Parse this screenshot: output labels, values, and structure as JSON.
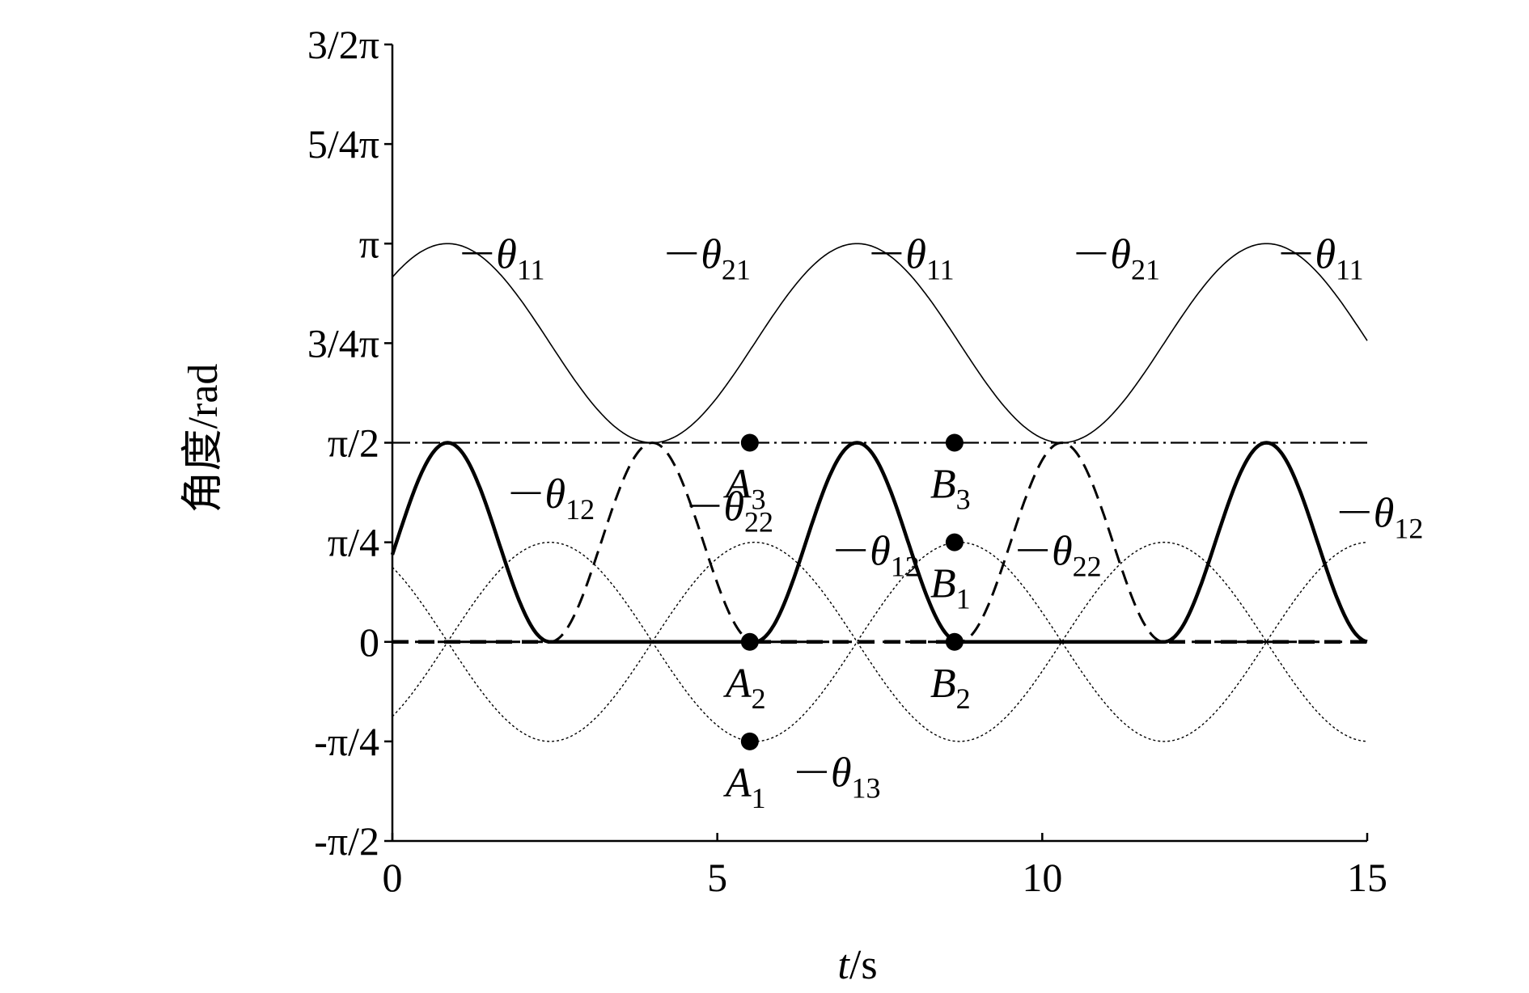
{
  "chart_data": {
    "type": "line",
    "title": "",
    "xlabel_italic": "t",
    "xlabel_unit": "/s",
    "ylabel": "角度/rad",
    "xlim": [
      0,
      15
    ],
    "ylim": [
      -1.5708,
      4.7124
    ],
    "x_ticks": [
      {
        "value": 0,
        "label": "0"
      },
      {
        "value": 5,
        "label": "5"
      },
      {
        "value": 10,
        "label": "10"
      },
      {
        "value": 15,
        "label": "15"
      }
    ],
    "y_ticks": [
      {
        "value": -1.5708,
        "label": "-π/2"
      },
      {
        "value": -0.7854,
        "label": "-π/4"
      },
      {
        "value": 0,
        "label": "0"
      },
      {
        "value": 0.7854,
        "label": "π/4"
      },
      {
        "value": 1.5708,
        "label": "π/2"
      },
      {
        "value": 2.3562,
        "label": "3/4π"
      },
      {
        "value": 3.1416,
        "label": "π"
      },
      {
        "value": 3.927,
        "label": "5/4π"
      },
      {
        "value": 4.7124,
        "label": "3/2π"
      }
    ],
    "period": 6.3,
    "series": [
      {
        "name": "θ11/θ21",
        "style": "thin-solid",
        "offset": 2.3562,
        "amplitude": 0.7854,
        "phase": 0.85,
        "mode": "cosine"
      },
      {
        "name": "θ12",
        "style": "thick-solid",
        "amplitude": 1.5708,
        "peaks": [
          0.85,
          7.15,
          13.45
        ],
        "mode": "pulse"
      },
      {
        "name": "θ22",
        "style": "dashed",
        "amplitude": 1.5708,
        "peaks": [
          4.0,
          10.3
        ],
        "mode": "pulse"
      },
      {
        "name": "",
        "style": "dotted-thin",
        "offset": 0,
        "amplitude": 0.7854,
        "phase": 2.425,
        "mode": "cosine"
      },
      {
        "name": "θ13",
        "style": "dotted-thin",
        "offset": 0,
        "amplitude": 0.7854,
        "phase": 5.575,
        "mode": "cosine"
      },
      {
        "name": "",
        "style": "dash-dot-thin",
        "constant": 1.5708,
        "mode": "constant"
      },
      {
        "name": "",
        "style": "dashed-thick",
        "constant": 0,
        "mode": "constant"
      }
    ],
    "points": [
      {
        "label": "A",
        "sub": "1",
        "x": 5.5,
        "y": -0.7854
      },
      {
        "label": "A",
        "sub": "2",
        "x": 5.5,
        "y": 0
      },
      {
        "label": "A",
        "sub": "3",
        "x": 5.5,
        "y": 1.5708
      },
      {
        "label": "B",
        "sub": "1",
        "x": 8.65,
        "y": 0.7854
      },
      {
        "label": "B",
        "sub": "2",
        "x": 8.65,
        "y": 0
      },
      {
        "label": "B",
        "sub": "3",
        "x": 8.65,
        "y": 1.5708
      }
    ],
    "curve_labels": [
      {
        "sym": "θ",
        "sub": "11",
        "x": 0.85,
        "y": 3.1416
      },
      {
        "sym": "θ",
        "sub": "21",
        "x": 4.0,
        "y": 3.1416
      },
      {
        "sym": "θ",
        "sub": "11",
        "x": 7.15,
        "y": 3.1416
      },
      {
        "sym": "θ",
        "sub": "21",
        "x": 10.3,
        "y": 3.1416
      },
      {
        "sym": "θ",
        "sub": "11",
        "x": 13.45,
        "y": 3.1416
      },
      {
        "sym": "θ",
        "sub": "12",
        "x": 1.6,
        "y": 1.25
      },
      {
        "sym": "θ",
        "sub": "22",
        "x": 4.35,
        "y": 1.15
      },
      {
        "sym": "θ",
        "sub": "12",
        "x": 6.6,
        "y": 0.8
      },
      {
        "sym": "θ",
        "sub": "22",
        "x": 9.4,
        "y": 0.8
      },
      {
        "sym": "θ",
        "sub": "12",
        "x": 14.35,
        "y": 1.1
      },
      {
        "sym": "θ",
        "sub": "13",
        "x": 6.0,
        "y": -0.95
      }
    ]
  }
}
